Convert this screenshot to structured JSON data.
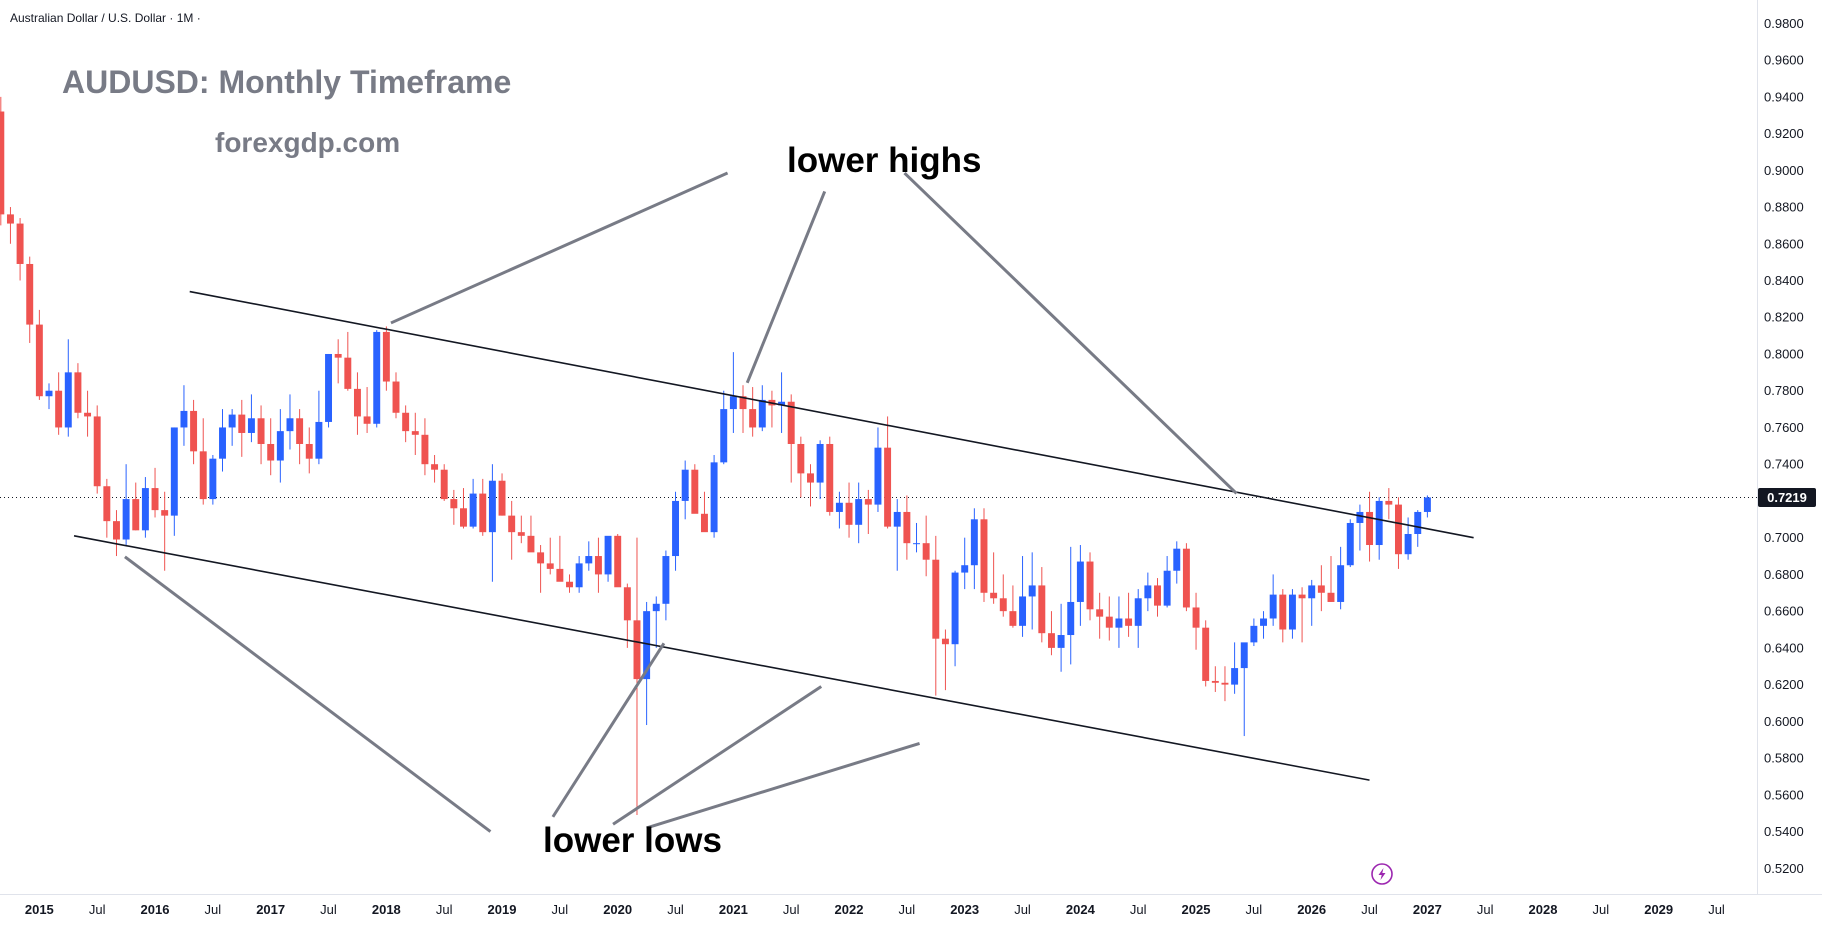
{
  "header": {
    "symbol": "Australian Dollar / U.S. Dollar · 1M ·",
    "title": "AUDUSD: Monthly Timeframe",
    "watermark": "forexgdp.com"
  },
  "annotations": {
    "lower_highs": "lower highs",
    "lower_lows": "lower lows"
  },
  "colors": {
    "up": "#2962ff",
    "down": "#ef5350",
    "text": "#131722",
    "grid": "#e0e3eb",
    "trendline": "#131722",
    "pointer": "#787b86",
    "price_label_bg": "#131722",
    "title": "#787b86"
  },
  "icons": {
    "replay": "lightning-icon"
  },
  "chart_data": {
    "type": "candlestick",
    "current_price": 0.7219,
    "current_price_label": "0.7219",
    "ylim": [
      0.512,
      0.984
    ],
    "y_ticks": [
      "0.9800",
      "0.9600",
      "0.9400",
      "0.9200",
      "0.9000",
      "0.8800",
      "0.8600",
      "0.8400",
      "0.8200",
      "0.8000",
      "0.7800",
      "0.7600",
      "0.7400",
      "0.7200",
      "0.7000",
      "0.6800",
      "0.6600",
      "0.6400",
      "0.6200",
      "0.6000",
      "0.5800",
      "0.5600",
      "0.5400",
      "0.5200"
    ],
    "x_ticks": [
      {
        "label": "2015",
        "t": 2015.0,
        "year": true
      },
      {
        "label": "Jul",
        "t": 2015.5,
        "year": false
      },
      {
        "label": "2016",
        "t": 2016.0,
        "year": true
      },
      {
        "label": "Jul",
        "t": 2016.5,
        "year": false
      },
      {
        "label": "2017",
        "t": 2017.0,
        "year": true
      },
      {
        "label": "Jul",
        "t": 2017.5,
        "year": false
      },
      {
        "label": "2018",
        "t": 2018.0,
        "year": true
      },
      {
        "label": "Jul",
        "t": 2018.5,
        "year": false
      },
      {
        "label": "2019",
        "t": 2019.0,
        "year": true
      },
      {
        "label": "Jul",
        "t": 2019.5,
        "year": false
      },
      {
        "label": "2020",
        "t": 2020.0,
        "year": true
      },
      {
        "label": "Jul",
        "t": 2020.5,
        "year": false
      },
      {
        "label": "2021",
        "t": 2021.0,
        "year": true
      },
      {
        "label": "Jul",
        "t": 2021.5,
        "year": false
      },
      {
        "label": "2022",
        "t": 2022.0,
        "year": true
      },
      {
        "label": "Jul",
        "t": 2022.5,
        "year": false
      },
      {
        "label": "2023",
        "t": 2023.0,
        "year": true
      },
      {
        "label": "Jul",
        "t": 2023.5,
        "year": false
      },
      {
        "label": "2024",
        "t": 2024.0,
        "year": true
      },
      {
        "label": "Jul",
        "t": 2024.5,
        "year": false
      },
      {
        "label": "2025",
        "t": 2025.0,
        "year": true
      },
      {
        "label": "Jul",
        "t": 2025.5,
        "year": false
      },
      {
        "label": "2026",
        "t": 2026.0,
        "year": true
      },
      {
        "label": "Jul",
        "t": 2026.5,
        "year": false
      },
      {
        "label": "2027",
        "t": 2027.0,
        "year": true
      },
      {
        "label": "Jul",
        "t": 2027.5,
        "year": false
      },
      {
        "label": "2028",
        "t": 2028.0,
        "year": true
      },
      {
        "label": "Jul",
        "t": 2028.5,
        "year": false
      },
      {
        "label": "2029",
        "t": 2029.0,
        "year": true
      },
      {
        "label": "Jul",
        "t": 2029.5,
        "year": false
      }
    ],
    "xlim": [
      2014.66,
      2029.85
    ],
    "candles_start": 2014.667,
    "candles_ohlc": [
      [
        0.932,
        0.94,
        0.87,
        0.876
      ],
      [
        0.876,
        0.88,
        0.86,
        0.871
      ],
      [
        0.871,
        0.874,
        0.84,
        0.849
      ],
      [
        0.849,
        0.853,
        0.806,
        0.816
      ],
      [
        0.816,
        0.824,
        0.775,
        0.777
      ],
      [
        0.777,
        0.784,
        0.77,
        0.78
      ],
      [
        0.78,
        0.79,
        0.756,
        0.76
      ],
      [
        0.76,
        0.808,
        0.755,
        0.79
      ],
      [
        0.79,
        0.795,
        0.765,
        0.768
      ],
      [
        0.768,
        0.78,
        0.755,
        0.766
      ],
      [
        0.766,
        0.772,
        0.724,
        0.728
      ],
      [
        0.728,
        0.732,
        0.7,
        0.709
      ],
      [
        0.709,
        0.715,
        0.69,
        0.699
      ],
      [
        0.699,
        0.74,
        0.696,
        0.721
      ],
      [
        0.721,
        0.73,
        0.704,
        0.704
      ],
      [
        0.704,
        0.733,
        0.7,
        0.727
      ],
      [
        0.727,
        0.738,
        0.711,
        0.715
      ],
      [
        0.715,
        0.725,
        0.682,
        0.712
      ],
      [
        0.712,
        0.76,
        0.701,
        0.76
      ],
      [
        0.76,
        0.783,
        0.75,
        0.769
      ],
      [
        0.769,
        0.775,
        0.74,
        0.747
      ],
      [
        0.747,
        0.765,
        0.718,
        0.721
      ],
      [
        0.721,
        0.745,
        0.718,
        0.743
      ],
      [
        0.743,
        0.77,
        0.736,
        0.76
      ],
      [
        0.76,
        0.77,
        0.75,
        0.767
      ],
      [
        0.767,
        0.775,
        0.744,
        0.757
      ],
      [
        0.757,
        0.778,
        0.752,
        0.765
      ],
      [
        0.765,
        0.772,
        0.74,
        0.751
      ],
      [
        0.751,
        0.765,
        0.734,
        0.742
      ],
      [
        0.742,
        0.77,
        0.73,
        0.758
      ],
      [
        0.758,
        0.778,
        0.748,
        0.765
      ],
      [
        0.765,
        0.77,
        0.74,
        0.751
      ],
      [
        0.751,
        0.76,
        0.735,
        0.743
      ],
      [
        0.743,
        0.78,
        0.74,
        0.763
      ],
      [
        0.763,
        0.8,
        0.76,
        0.8
      ],
      [
        0.8,
        0.808,
        0.784,
        0.798
      ],
      [
        0.798,
        0.812,
        0.78,
        0.781
      ],
      [
        0.781,
        0.79,
        0.756,
        0.766
      ],
      [
        0.766,
        0.782,
        0.757,
        0.762
      ],
      [
        0.762,
        0.813,
        0.76,
        0.812
      ],
      [
        0.812,
        0.815,
        0.78,
        0.785
      ],
      [
        0.785,
        0.79,
        0.765,
        0.768
      ],
      [
        0.768,
        0.772,
        0.752,
        0.758
      ],
      [
        0.758,
        0.768,
        0.745,
        0.756
      ],
      [
        0.756,
        0.765,
        0.734,
        0.74
      ],
      [
        0.74,
        0.745,
        0.73,
        0.737
      ],
      [
        0.737,
        0.74,
        0.72,
        0.721
      ],
      [
        0.721,
        0.726,
        0.707,
        0.716
      ],
      [
        0.716,
        0.727,
        0.705,
        0.706
      ],
      [
        0.706,
        0.732,
        0.705,
        0.724
      ],
      [
        0.724,
        0.732,
        0.701,
        0.703
      ],
      [
        0.703,
        0.74,
        0.676,
        0.731
      ],
      [
        0.731,
        0.735,
        0.712,
        0.712
      ],
      [
        0.712,
        0.72,
        0.688,
        0.703
      ],
      [
        0.703,
        0.712,
        0.697,
        0.701
      ],
      [
        0.701,
        0.712,
        0.693,
        0.692
      ],
      [
        0.692,
        0.696,
        0.67,
        0.686
      ],
      [
        0.686,
        0.7,
        0.68,
        0.683
      ],
      [
        0.683,
        0.701,
        0.68,
        0.676
      ],
      [
        0.676,
        0.68,
        0.67,
        0.673
      ],
      [
        0.673,
        0.69,
        0.67,
        0.686
      ],
      [
        0.686,
        0.698,
        0.682,
        0.69
      ],
      [
        0.69,
        0.7,
        0.67,
        0.68
      ],
      [
        0.68,
        0.7,
        0.676,
        0.701
      ],
      [
        0.701,
        0.702,
        0.683,
        0.673
      ],
      [
        0.673,
        0.675,
        0.64,
        0.655
      ],
      [
        0.655,
        0.7,
        0.549,
        0.623
      ],
      [
        0.623,
        0.665,
        0.598,
        0.66
      ],
      [
        0.66,
        0.668,
        0.64,
        0.664
      ],
      [
        0.664,
        0.693,
        0.655,
        0.69
      ],
      [
        0.69,
        0.725,
        0.682,
        0.72
      ],
      [
        0.72,
        0.742,
        0.71,
        0.737
      ],
      [
        0.737,
        0.74,
        0.715,
        0.713
      ],
      [
        0.713,
        0.725,
        0.704,
        0.703
      ],
      [
        0.703,
        0.745,
        0.7,
        0.741
      ],
      [
        0.741,
        0.78,
        0.74,
        0.77
      ],
      [
        0.77,
        0.801,
        0.757,
        0.777
      ],
      [
        0.777,
        0.783,
        0.757,
        0.77
      ],
      [
        0.77,
        0.782,
        0.755,
        0.76
      ],
      [
        0.76,
        0.783,
        0.758,
        0.775
      ],
      [
        0.775,
        0.78,
        0.76,
        0.772
      ],
      [
        0.772,
        0.79,
        0.757,
        0.774
      ],
      [
        0.774,
        0.778,
        0.73,
        0.751
      ],
      [
        0.751,
        0.755,
        0.722,
        0.735
      ],
      [
        0.735,
        0.74,
        0.717,
        0.73
      ],
      [
        0.73,
        0.753,
        0.721,
        0.751
      ],
      [
        0.751,
        0.755,
        0.712,
        0.714
      ],
      [
        0.714,
        0.725,
        0.705,
        0.719
      ],
      [
        0.719,
        0.73,
        0.7,
        0.707
      ],
      [
        0.707,
        0.73,
        0.697,
        0.721
      ],
      [
        0.721,
        0.726,
        0.702,
        0.718
      ],
      [
        0.718,
        0.76,
        0.714,
        0.749
      ],
      [
        0.749,
        0.766,
        0.705,
        0.706
      ],
      [
        0.706,
        0.721,
        0.682,
        0.714
      ],
      [
        0.714,
        0.723,
        0.688,
        0.697
      ],
      [
        0.697,
        0.708,
        0.692,
        0.697
      ],
      [
        0.697,
        0.712,
        0.679,
        0.688
      ],
      [
        0.688,
        0.701,
        0.614,
        0.645
      ],
      [
        0.645,
        0.65,
        0.617,
        0.642
      ],
      [
        0.642,
        0.682,
        0.63,
        0.681
      ],
      [
        0.681,
        0.7,
        0.672,
        0.685
      ],
      [
        0.685,
        0.716,
        0.672,
        0.71
      ],
      [
        0.71,
        0.716,
        0.665,
        0.67
      ],
      [
        0.67,
        0.692,
        0.664,
        0.667
      ],
      [
        0.667,
        0.68,
        0.657,
        0.66
      ],
      [
        0.66,
        0.674,
        0.651,
        0.652
      ],
      [
        0.652,
        0.69,
        0.646,
        0.668
      ],
      [
        0.668,
        0.692,
        0.65,
        0.674
      ],
      [
        0.674,
        0.684,
        0.643,
        0.648
      ],
      [
        0.648,
        0.66,
        0.636,
        0.64
      ],
      [
        0.64,
        0.664,
        0.627,
        0.647
      ],
      [
        0.647,
        0.695,
        0.631,
        0.665
      ],
      [
        0.665,
        0.696,
        0.652,
        0.687
      ],
      [
        0.687,
        0.692,
        0.655,
        0.661
      ],
      [
        0.661,
        0.67,
        0.645,
        0.657
      ],
      [
        0.657,
        0.668,
        0.644,
        0.651
      ],
      [
        0.651,
        0.668,
        0.64,
        0.656
      ],
      [
        0.656,
        0.67,
        0.646,
        0.652
      ],
      [
        0.652,
        0.672,
        0.64,
        0.667
      ],
      [
        0.667,
        0.681,
        0.66,
        0.674
      ],
      [
        0.674,
        0.678,
        0.657,
        0.663
      ],
      [
        0.663,
        0.69,
        0.662,
        0.682
      ],
      [
        0.682,
        0.698,
        0.675,
        0.694
      ],
      [
        0.694,
        0.697,
        0.66,
        0.662
      ],
      [
        0.662,
        0.67,
        0.639,
        0.651
      ],
      [
        0.651,
        0.655,
        0.619,
        0.622
      ],
      [
        0.622,
        0.63,
        0.616,
        0.621
      ],
      [
        0.621,
        0.63,
        0.611,
        0.62
      ],
      [
        0.62,
        0.643,
        0.615,
        0.629
      ],
      [
        0.629,
        0.64,
        0.592,
        0.643
      ],
      [
        0.643,
        0.656,
        0.641,
        0.652
      ],
      [
        0.652,
        0.66,
        0.645,
        0.656
      ],
      [
        0.656,
        0.68,
        0.652,
        0.669
      ],
      [
        0.669,
        0.672,
        0.643,
        0.65
      ],
      [
        0.65,
        0.672,
        0.645,
        0.669
      ],
      [
        0.669,
        0.673,
        0.643,
        0.667
      ],
      [
        0.667,
        0.677,
        0.652,
        0.674
      ],
      [
        0.674,
        0.685,
        0.66,
        0.67
      ],
      [
        0.67,
        0.69,
        0.665,
        0.665
      ],
      [
        0.665,
        0.695,
        0.661,
        0.685
      ],
      [
        0.685,
        0.71,
        0.684,
        0.708
      ],
      [
        0.708,
        0.718,
        0.693,
        0.714
      ],
      [
        0.714,
        0.725,
        0.687,
        0.696
      ],
      [
        0.696,
        0.722,
        0.688,
        0.72
      ],
      [
        0.72,
        0.727,
        0.71,
        0.718
      ],
      [
        0.718,
        0.722,
        0.683,
        0.691
      ],
      [
        0.691,
        0.711,
        0.688,
        0.702
      ],
      [
        0.702,
        0.715,
        0.695,
        0.714
      ],
      [
        0.714,
        0.723,
        0.711,
        0.7219
      ]
    ],
    "trendlines": [
      {
        "name": "upper-trendline",
        "x1": 2016.3,
        "y1": 0.834,
        "x2": 2027.4,
        "y2": 0.7
      },
      {
        "name": "lower-trendline",
        "x1": 2015.3,
        "y1": 0.701,
        "x2": 2026.5,
        "y2": 0.568
      }
    ],
    "pointers_lower_highs": [
      {
        "from": [
          2020.95,
          0.8985
        ],
        "to": [
          2018.04,
          0.8169
        ]
      },
      {
        "from": [
          2021.79,
          0.8885
        ],
        "to": [
          2021.12,
          0.7843
        ]
      },
      {
        "from": [
          2022.48,
          0.8985
        ],
        "to": [
          2025.35,
          0.7241
        ]
      }
    ],
    "pointers_lower_lows": [
      {
        "from": [
          2018.9,
          0.54
        ],
        "to": [
          2015.74,
          0.6896
        ]
      },
      {
        "from": [
          2019.44,
          0.548
        ],
        "to": [
          2020.4,
          0.6425
        ]
      },
      {
        "from": [
          2019.96,
          0.544
        ],
        "to": [
          2021.76,
          0.619
        ]
      },
      {
        "from": [
          2020.25,
          0.542
        ],
        "to": [
          2022.61,
          0.588
        ]
      }
    ]
  }
}
